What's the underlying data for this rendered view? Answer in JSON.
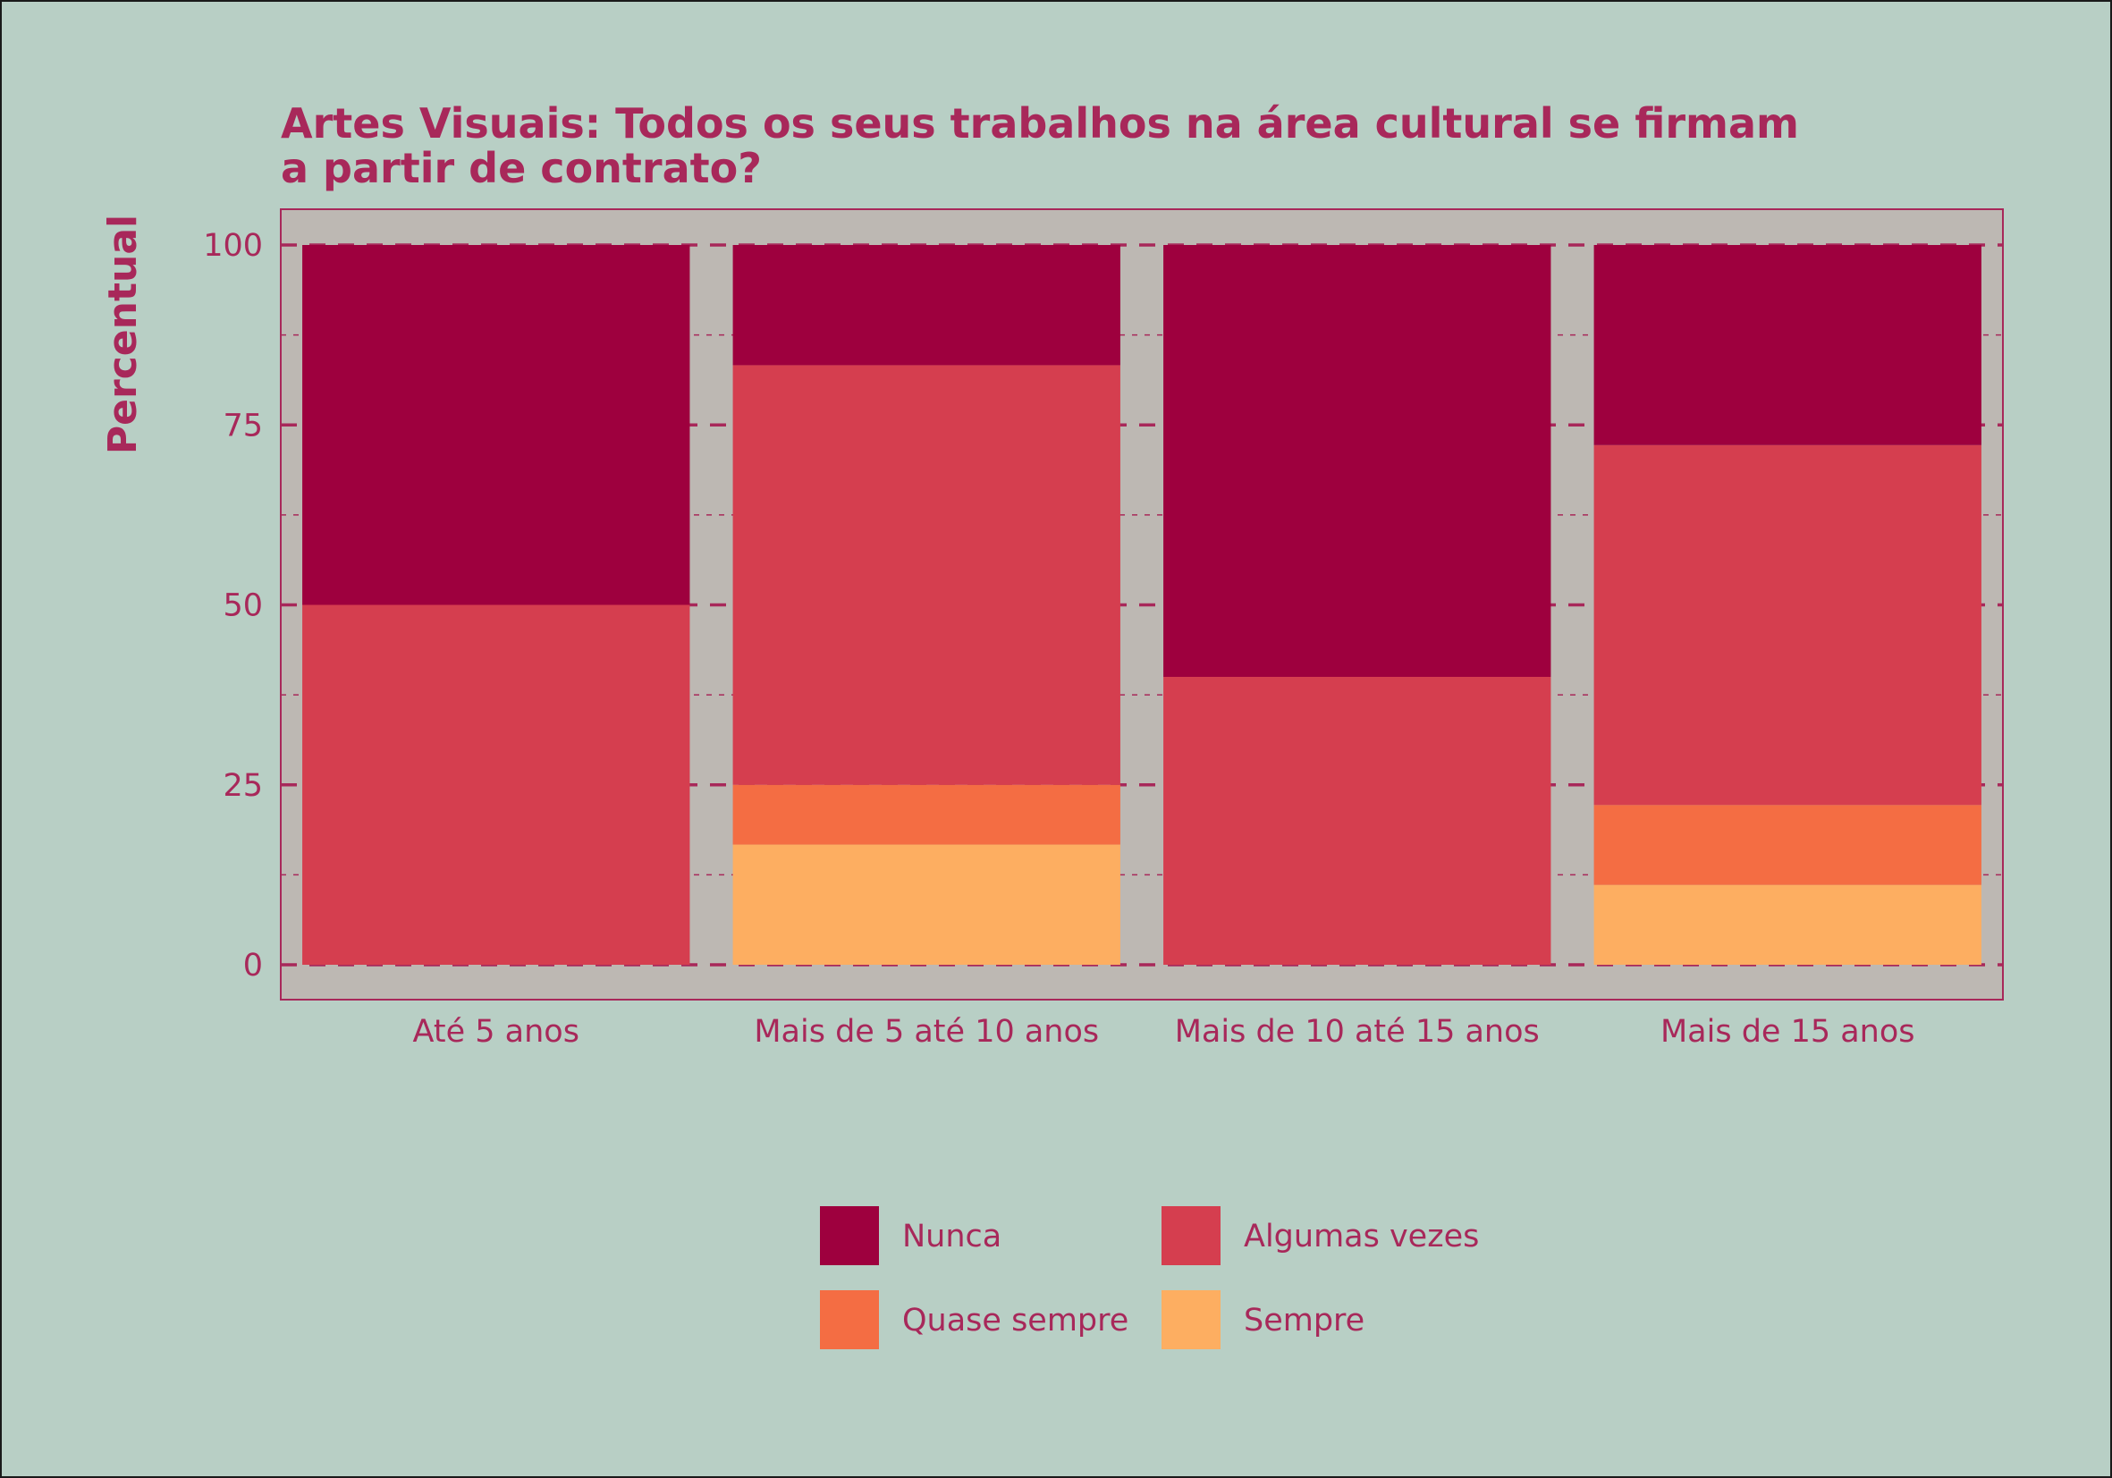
{
  "chart_data": {
    "type": "bar",
    "stacked": true,
    "title": "Artes Visuais: Todos os seus trabalhos na área cultural se firmam a partir de contrato?",
    "title_lines": [
      "Artes Visuais: Todos os seus trabalhos na área cultural se firmam",
      "a partir de contrato?"
    ],
    "xlabel": "",
    "ylabel": "Percentual",
    "ylim": [
      0,
      100
    ],
    "yticks": [
      0,
      25,
      50,
      75,
      100
    ],
    "categories": [
      "Até 5 anos",
      "Mais de 5 até 10 anos",
      "Mais de 10 até 15 anos",
      "Mais de 15 anos"
    ],
    "series": [
      {
        "name": "Sempre",
        "color": "#fdae61",
        "values": [
          0,
          16.7,
          0,
          11.1
        ]
      },
      {
        "name": "Quase sempre",
        "color": "#f46d43",
        "values": [
          0,
          8.3,
          0,
          11.1
        ]
      },
      {
        "name": "Algumas vezes",
        "color": "#d53e4f",
        "values": [
          50,
          58.3,
          40,
          50
        ]
      },
      {
        "name": "Nunca",
        "color": "#9e003e",
        "values": [
          50,
          16.7,
          60,
          27.8
        ]
      }
    ],
    "legend_order": [
      "Nunca",
      "Algumas vezes",
      "Quase sempre",
      "Sempre"
    ],
    "legend_position": "bottom",
    "grid": true,
    "panel_color": "#bdb8b3",
    "background_color": "#b8cfc5",
    "text_color": "#a8285a"
  }
}
